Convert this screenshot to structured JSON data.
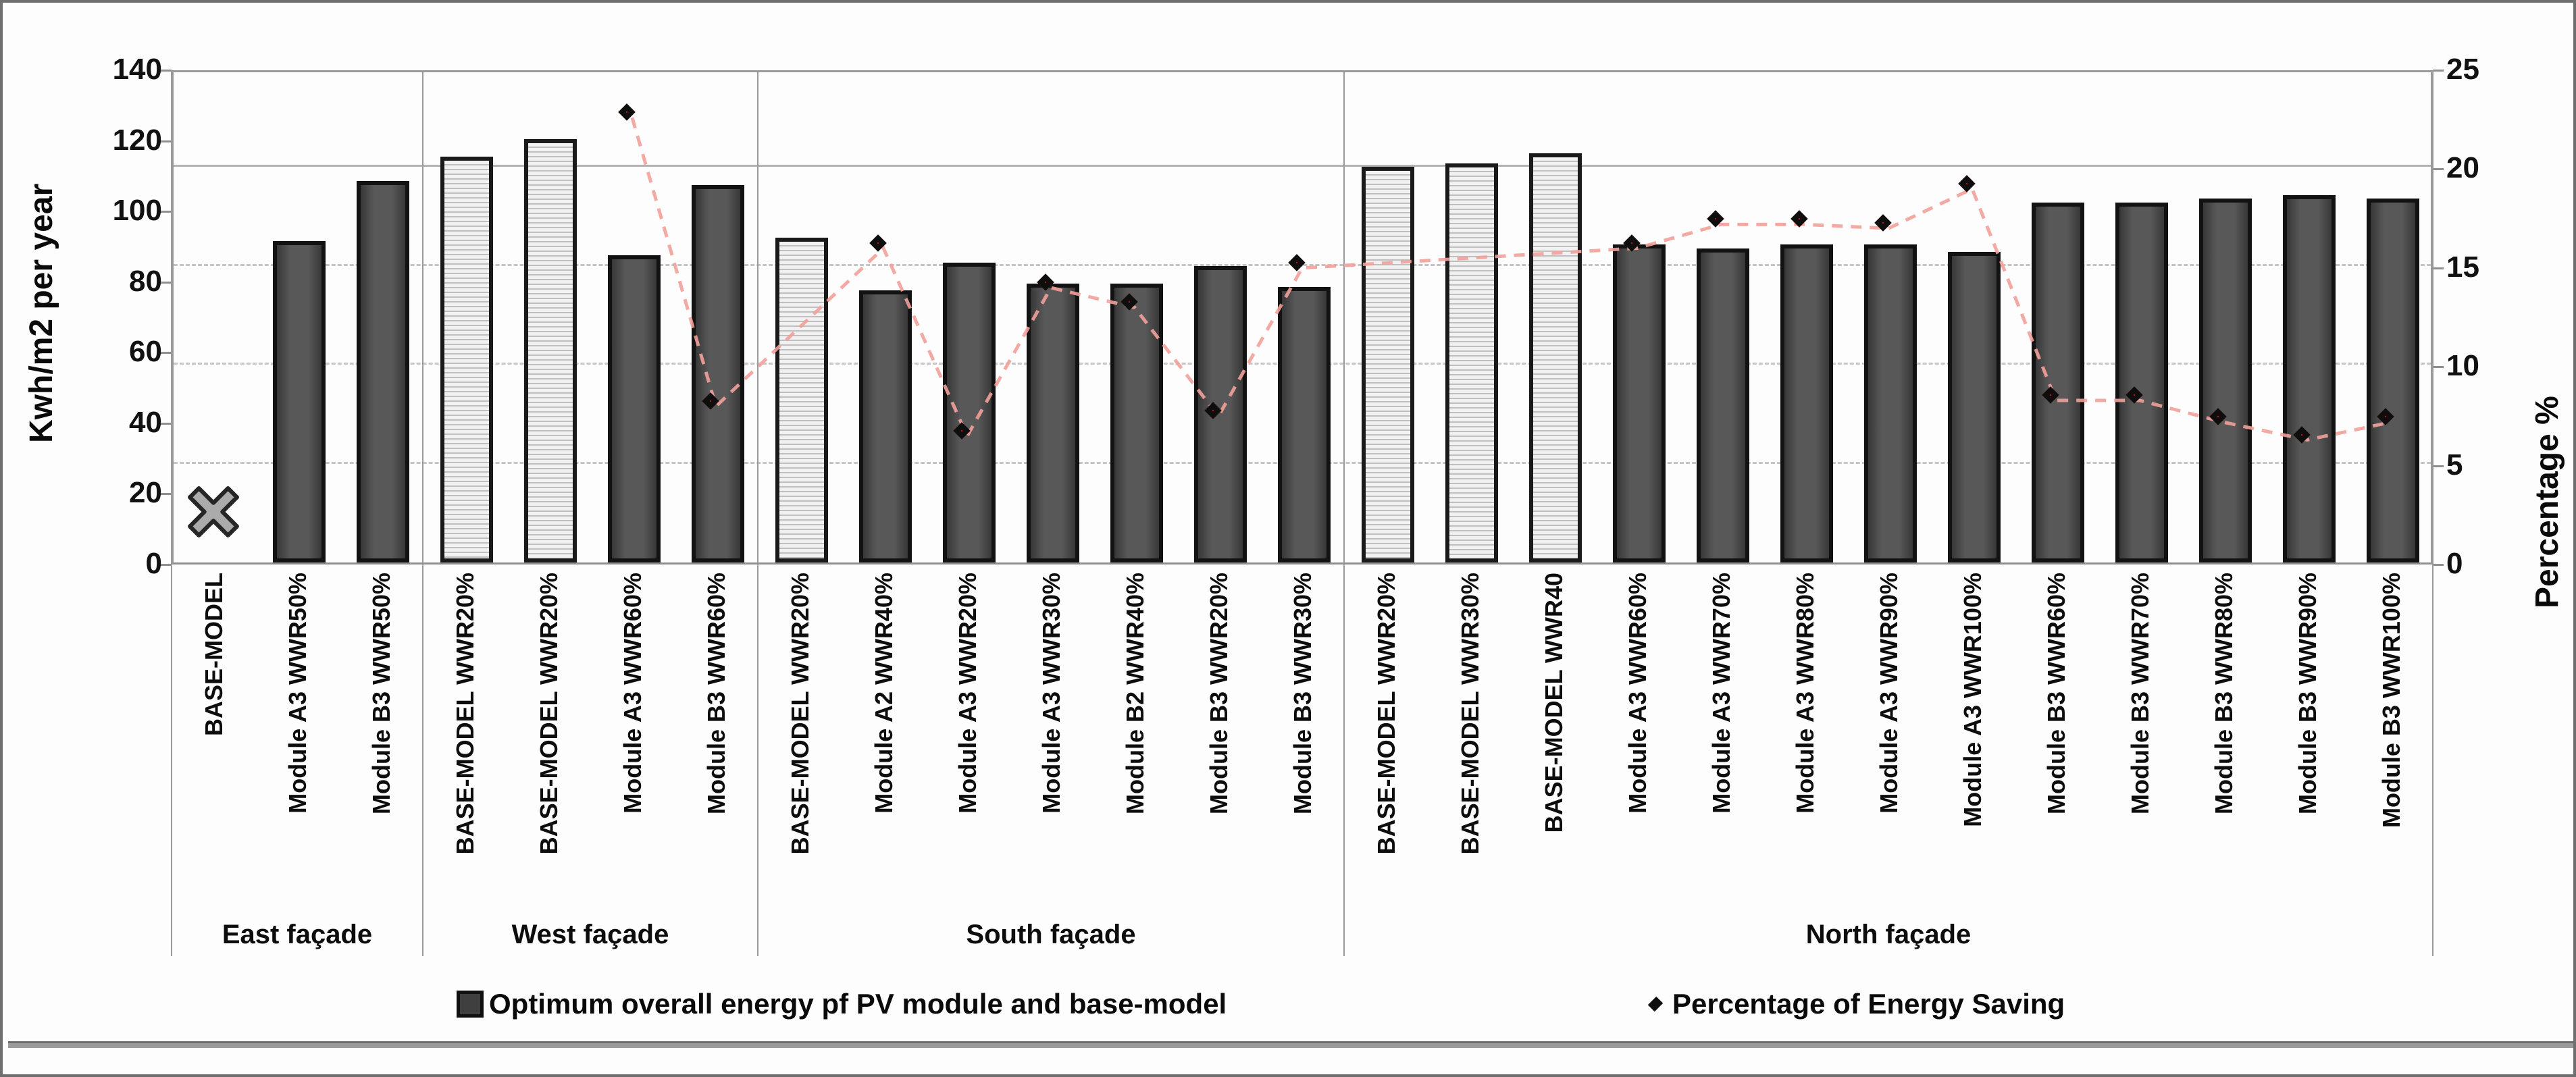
{
  "figure_title": "",
  "axes": {
    "left_title": "Kwh/m2 per year",
    "right_title": "Percentage %"
  },
  "legend": {
    "bars_label": "Optimum overall energy pf PV module and base-model",
    "line_label": "Percentage of Energy Saving"
  },
  "chart_data": {
    "type": "bar",
    "subtype": "combo-bar-line-dual-axis",
    "left_axis": {
      "label": "Kwh/m2 per year",
      "min": 0,
      "max": 140,
      "ticks": [
        0,
        20,
        40,
        60,
        80,
        100,
        120,
        140
      ]
    },
    "right_axis": {
      "label": "Percentage %",
      "min": 0,
      "max": 25,
      "ticks": [
        0,
        5,
        10,
        15,
        20,
        25
      ]
    },
    "grid": {
      "right_axis_gridlines_pct": [
        5,
        10,
        15,
        20,
        25
      ]
    },
    "legend_position": "bottom",
    "series": [
      {
        "name": "Optimum overall energy pf PV module and base-model",
        "type": "bar",
        "axis": "left",
        "marker": "dark-square"
      },
      {
        "name": "Percentage of Energy Saving",
        "type": "line",
        "axis": "right",
        "marker": "red-diamond"
      }
    ],
    "base_model_east_x_marker": {
      "label": "BASE-MODEL",
      "value_kwh": 15,
      "marker": "gray-x-cross"
    },
    "groups": [
      {
        "name": "East façade",
        "items": [
          {
            "label": "BASE-MODEL",
            "style": "x-marker",
            "bar_kwh": null,
            "saving_pct": null
          },
          {
            "label": "Module A3 WWR50%",
            "style": "module",
            "bar_kwh": 91,
            "saving_pct": null
          },
          {
            "label": "Module B3 WWR50%",
            "style": "module",
            "bar_kwh": 108,
            "saving_pct": null
          }
        ]
      },
      {
        "name": "West façade",
        "items": [
          {
            "label": "BASE-MODEL WWR20%",
            "style": "base",
            "bar_kwh": 115,
            "saving_pct": null
          },
          {
            "label": "BASE-MODEL WWR20%",
            "style": "base",
            "bar_kwh": 120,
            "saving_pct": null
          },
          {
            "label": "Module A3 WWR60%",
            "style": "module",
            "bar_kwh": 87,
            "saving_pct": 22.6
          },
          {
            "label": "Module B3 WWR60%",
            "style": "module",
            "bar_kwh": 107,
            "saving_pct": 8.0
          }
        ]
      },
      {
        "name": "South façade",
        "items": [
          {
            "label": "BASE-MODEL WWR20%",
            "style": "base",
            "bar_kwh": 92,
            "saving_pct": null
          },
          {
            "label": "Module A2 WWR40%",
            "style": "module",
            "bar_kwh": 77,
            "saving_pct": 16.0
          },
          {
            "label": "Module A3 WWR20%",
            "style": "module",
            "bar_kwh": 85,
            "saving_pct": 6.5
          },
          {
            "label": "Module A3 WWR30%",
            "style": "module",
            "bar_kwh": 79,
            "saving_pct": 14.0
          },
          {
            "label": "Module B2 WWR40%",
            "style": "module",
            "bar_kwh": 79,
            "saving_pct": 13.0
          },
          {
            "label": "Module B3 WWR20%",
            "style": "module",
            "bar_kwh": 84,
            "saving_pct": 7.5
          },
          {
            "label": "Module B3 WWR30%",
            "style": "module",
            "bar_kwh": 78,
            "saving_pct": 15.0
          }
        ]
      },
      {
        "name": "North façade",
        "items": [
          {
            "label": "BASE-MODEL WWR20%",
            "style": "base",
            "bar_kwh": 112,
            "saving_pct": null
          },
          {
            "label": "BASE-MODEL WWR30%",
            "style": "base",
            "bar_kwh": 113,
            "saving_pct": null
          },
          {
            "label": "BASE-MODEL WWR40",
            "style": "base",
            "bar_kwh": 116,
            "saving_pct": null
          },
          {
            "label": "Module A3 WWR60%",
            "style": "module",
            "bar_kwh": 90,
            "saving_pct": 16.0
          },
          {
            "label": "Module A3 WWR70%",
            "style": "module",
            "bar_kwh": 89,
            "saving_pct": 17.2
          },
          {
            "label": "Module A3 WWR80%",
            "style": "module",
            "bar_kwh": 90,
            "saving_pct": 17.2
          },
          {
            "label": "Module A3 WWR90%",
            "style": "module",
            "bar_kwh": 90,
            "saving_pct": 17.0
          },
          {
            "label": "Module A3 WWR100%",
            "style": "module",
            "bar_kwh": 88,
            "saving_pct": 19.0
          },
          {
            "label": "Module B3 WWR60%",
            "style": "module",
            "bar_kwh": 102,
            "saving_pct": 8.3
          },
          {
            "label": "Module B3 WWR70%",
            "style": "module",
            "bar_kwh": 102,
            "saving_pct": 8.3
          },
          {
            "label": "Module B3 WWR80%",
            "style": "module",
            "bar_kwh": 103,
            "saving_pct": 7.2
          },
          {
            "label": "Module B3 WWR90%",
            "style": "module",
            "bar_kwh": 104,
            "saving_pct": 6.3
          },
          {
            "label": "Module B3 WWR100%",
            "style": "module",
            "bar_kwh": 103,
            "saving_pct": 7.2
          }
        ]
      }
    ],
    "colors": {
      "module_bar": "#4a4a4a",
      "base_bar_stripe_light": "#f1f1f1",
      "base_bar_stripe_dark": "#bfbfbf",
      "bar_border": "#121212",
      "diamond_fill": "#e31219",
      "diamond_border": "#0e0e0e",
      "line": "#f2a09a",
      "gridline": "#c6c6c6",
      "x_marker": "#ababab"
    }
  }
}
